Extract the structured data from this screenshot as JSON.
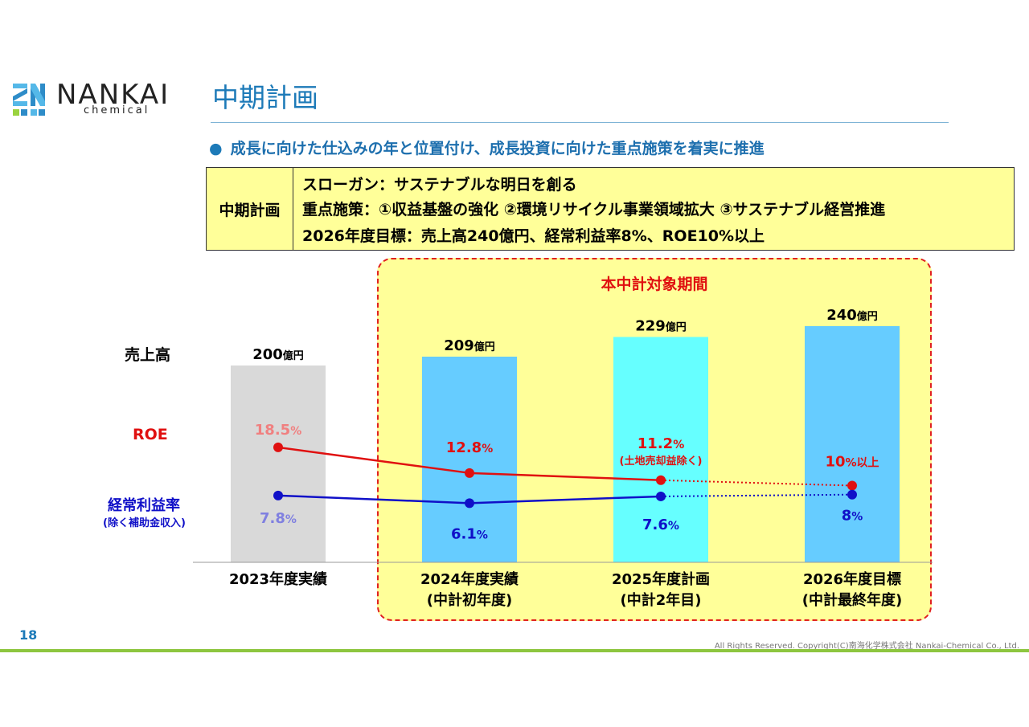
{
  "header": {
    "logo_name": "NANKAI",
    "logo_sub": "chemical",
    "title": "中期計画",
    "bullet": "成長に向けた仕込みの年と位置付け、成長投資に向けた重点施策を着実に推進"
  },
  "plan": {
    "label": "中期計画",
    "lines": [
      "スローガン：サステナブルな明日を創る",
      "重点施策：①収益基盤の強化 ②環境リサイクル事業領域拡大 ③サステナブル経営推進",
      "2026年度目標：売上高240億円、経常利益率8%、ROE10%以上"
    ]
  },
  "period_title": "本中計対象期間",
  "side_labels": {
    "sales": "売上高",
    "roe": "ROE",
    "ordinary": "経常利益率",
    "ordinary_note": "(除く補助金収入)"
  },
  "colors": {
    "accent": "#1d7ab8",
    "bar_2023": "#d9d9d9",
    "bar_2024": "#66ccff",
    "bar_2025": "#66ffff",
    "bar_2026": "#66ccff",
    "roe_line": "#e01010",
    "ordinary_line": "#1010c8",
    "highlight_bg": "#ffff99",
    "footer_rule": "#8dc63f"
  },
  "chart_data": {
    "type": "bar",
    "categories": [
      "2023年度実績",
      "2024年度実績",
      "2025年度計画",
      "2026年度目標"
    ],
    "category_notes": [
      "",
      "(中計初年度)",
      "(中計2年目)",
      "(中計最終年度)"
    ],
    "series": [
      {
        "name": "売上高",
        "type": "bar",
        "values": [
          200,
          209,
          229,
          240
        ],
        "labels": [
          "200",
          "209",
          "229",
          "240"
        ],
        "unit": "億円"
      },
      {
        "name": "ROE",
        "type": "line",
        "values": [
          18.5,
          12.8,
          11.2,
          10
        ],
        "labels": [
          "18.5",
          "12.8",
          "11.2",
          "10"
        ],
        "units": [
          "%",
          "%",
          "%",
          "%以上"
        ],
        "notes": [
          "",
          "",
          "(土地売却益除く)",
          ""
        ],
        "dotted_segments": [
          2
        ]
      },
      {
        "name": "経常利益率",
        "type": "line",
        "values": [
          7.8,
          6.1,
          7.6,
          8
        ],
        "labels": [
          "7.8",
          "6.1",
          "7.6",
          "8"
        ],
        "units": [
          "%",
          "%",
          "%",
          "%"
        ],
        "dotted_segments": [
          2
        ]
      }
    ]
  },
  "footer": {
    "page_number": "18",
    "copyright": "All Rights Reserved. Copyright(C)南海化学株式会社 Nankai-Chemical Co., Ltd."
  }
}
